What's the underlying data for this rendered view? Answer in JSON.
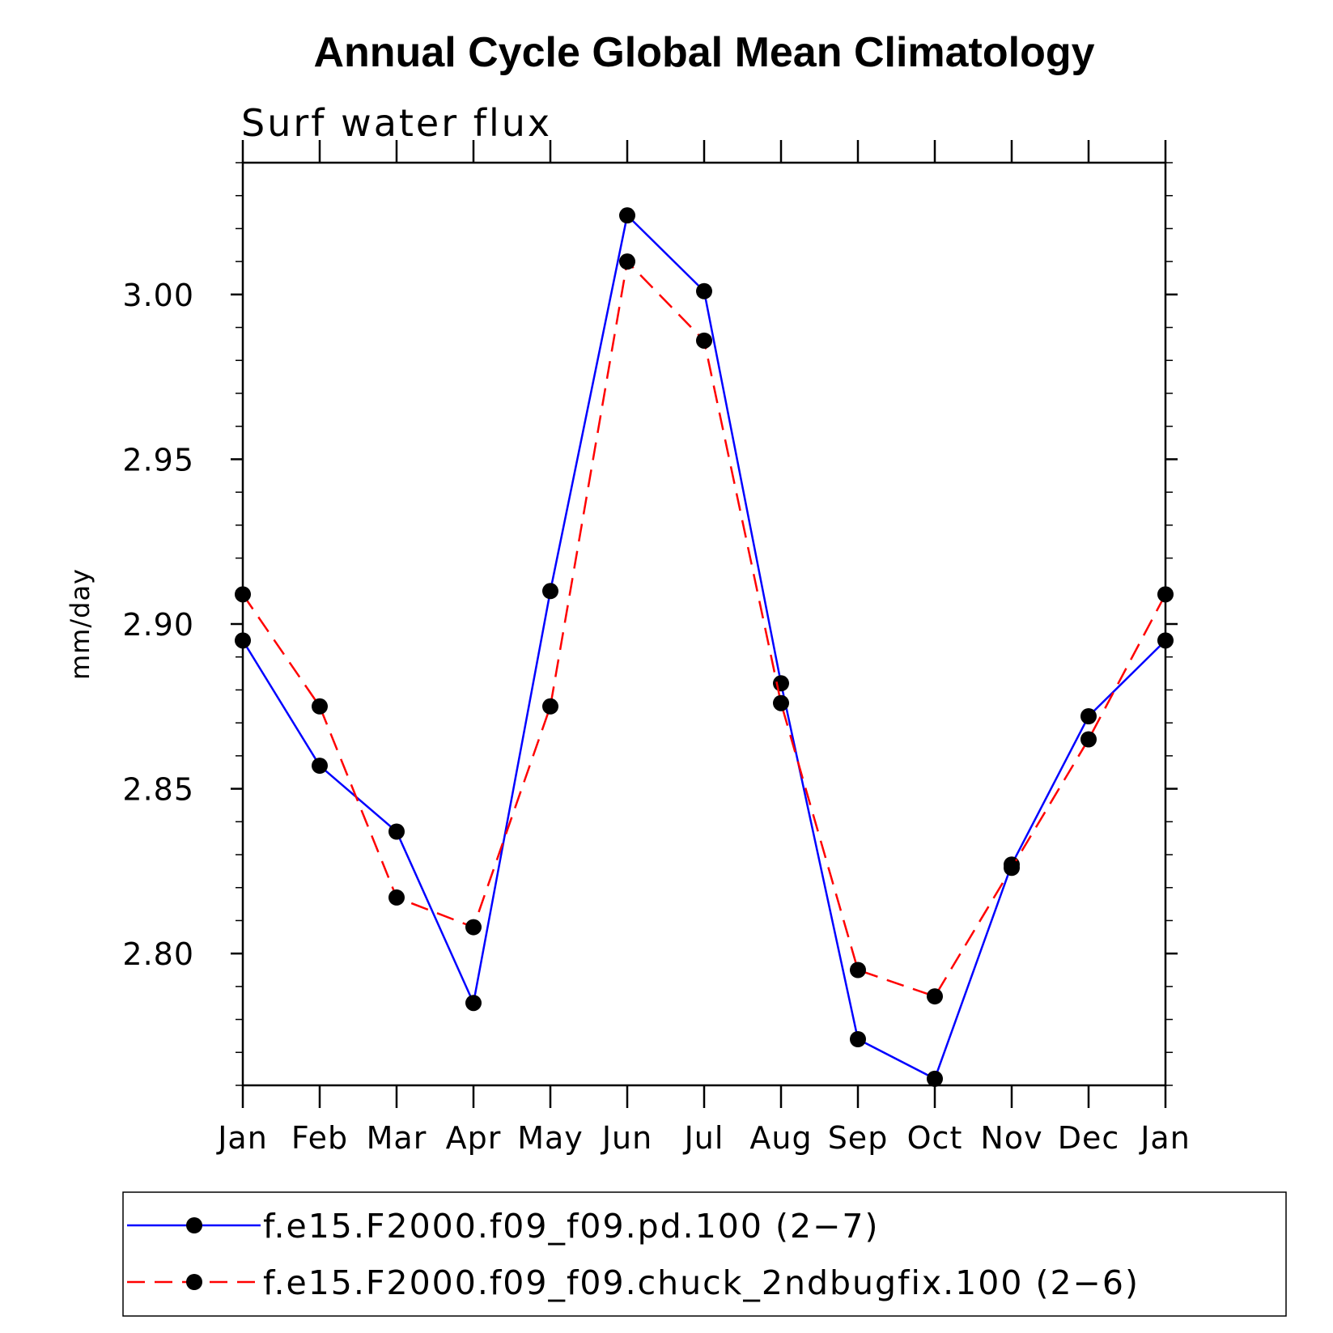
{
  "chart_data": {
    "type": "line",
    "title": "Annual Cycle Global Mean Climatology",
    "subtitle": "Surf water flux",
    "xlabel": "",
    "ylabel": "mm/day",
    "categories": [
      "Jan",
      "Feb",
      "Mar",
      "Apr",
      "May",
      "Jun",
      "Jul",
      "Aug",
      "Sep",
      "Oct",
      "Nov",
      "Dec",
      "Jan"
    ],
    "ylim": [
      2.76,
      3.04
    ],
    "yticks": [
      "2.80",
      "2.85",
      "2.90",
      "2.95",
      "3.00"
    ],
    "grid": false,
    "legend_position": "bottom",
    "series": [
      {
        "name": "f.e15.F2000.f09_f09.pd.100 (2−7)",
        "color": "#0000ff",
        "dash": "solid",
        "marker": "filled-circle",
        "values": [
          2.895,
          2.857,
          2.837,
          2.785,
          2.91,
          3.024,
          3.001,
          2.882,
          2.774,
          2.762,
          2.827,
          2.872,
          2.895
        ]
      },
      {
        "name": "f.e15.F2000.f09_f09.chuck_2ndbugfix.100 (2−6)",
        "color": "#ff0000",
        "dash": "dashed",
        "marker": "filled-circle",
        "values": [
          2.909,
          2.875,
          2.817,
          2.808,
          2.875,
          3.01,
          2.986,
          2.876,
          2.795,
          2.787,
          2.826,
          2.865,
          2.909
        ]
      }
    ]
  }
}
